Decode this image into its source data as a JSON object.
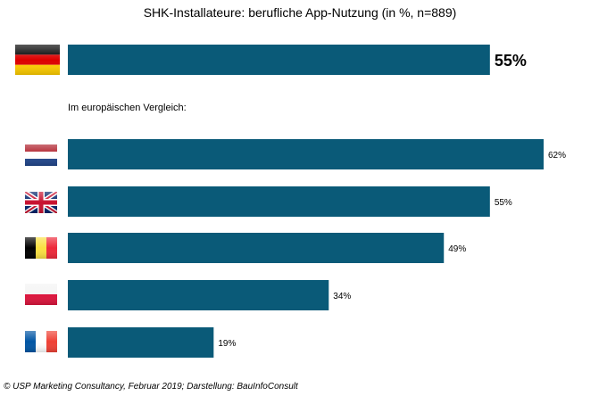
{
  "chart_data": {
    "type": "bar",
    "orientation": "horizontal",
    "title": "SHK-Installateure:  berufliche App-Nutzung  (in %, n=889)",
    "bar_color": "#0a5a78",
    "headline": {
      "category": "Deutschland",
      "flag": "germany-flag-icon",
      "value": 55,
      "label": "55%"
    },
    "comparison_heading": "Im europäischen Vergleich:",
    "categories": [
      "Niederlande",
      "Großbritannien",
      "Belgien",
      "Polen",
      "Frankreich"
    ],
    "flags": [
      "netherlands-flag-icon",
      "uk-flag-icon",
      "belgium-flag-icon",
      "poland-flag-icon",
      "france-flag-icon"
    ],
    "values": [
      62,
      55,
      49,
      34,
      19
    ],
    "labels": [
      "62%",
      "55%",
      "49%",
      "34%",
      "19%"
    ],
    "xlim": [
      0,
      62
    ]
  },
  "footer": "© USP Marketing Consultancy, Februar 2019; Darstellung: BauInfoConsult"
}
